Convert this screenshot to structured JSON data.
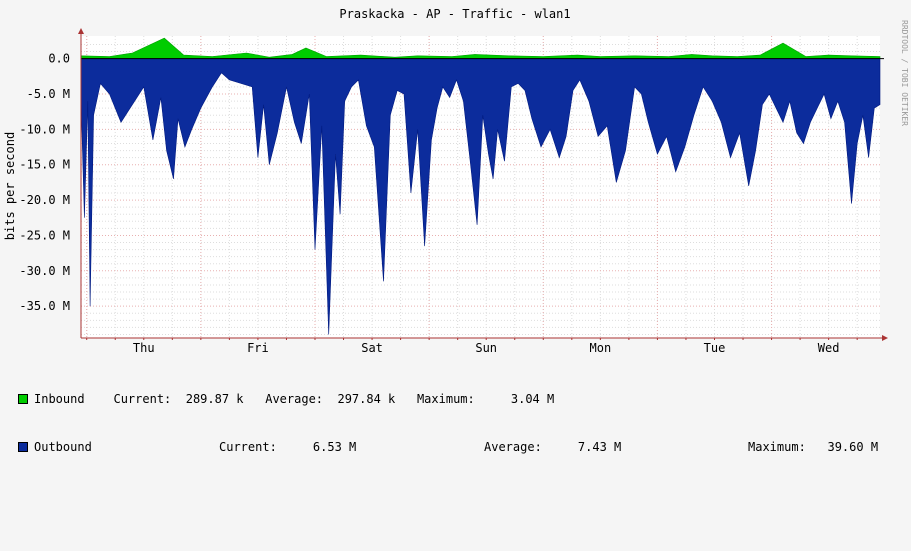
{
  "chart_data": {
    "type": "area",
    "title": "Praskacka - AP - Traffic - wlan1",
    "ylabel": "bits per second",
    "watermark": "RRDTOOL / TOBI OETIKER",
    "x_labels": [
      "Thu",
      "Fri",
      "Sat",
      "Sun",
      "Mon",
      "Tue",
      "Wed"
    ],
    "x_range_days": [
      -0.55,
      6.45
    ],
    "y_ticks": [
      "0.0",
      "-5.0 M",
      "-10.0 M",
      "-15.0 M",
      "-20.0 M",
      "-25.0 M",
      "-30.0 M",
      "-35.0 M"
    ],
    "y_tick_values": [
      0,
      -5,
      -10,
      -15,
      -20,
      -25,
      -30,
      -35
    ],
    "ylim": [
      -39.5,
      3.2
    ],
    "grid": true,
    "colors": {
      "inbound": "#00cc00",
      "outbound": "#0c2c9c",
      "inbound_edge": "#00a000",
      "outbound_edge": "#001a80",
      "grid_major": "#e8b0b0",
      "grid_minor": "#dddddd",
      "axis": "#aa3333",
      "background": "#f5f5f5",
      "plot_bg": "#ffffff"
    },
    "series": [
      {
        "name": "Inbound",
        "unit": "M",
        "x": [
          -0.55,
          -0.3,
          -0.1,
          0.18,
          0.35,
          0.6,
          0.9,
          1.1,
          1.3,
          1.42,
          1.6,
          1.9,
          2.2,
          2.4,
          2.7,
          2.9,
          3.2,
          3.5,
          3.8,
          4.0,
          4.3,
          4.6,
          4.8,
          4.98,
          5.2,
          5.4,
          5.6,
          5.8,
          6.0,
          6.2,
          6.45
        ],
        "values": [
          0.4,
          0.3,
          0.8,
          2.9,
          0.5,
          0.3,
          0.8,
          0.2,
          0.6,
          1.5,
          0.3,
          0.5,
          0.2,
          0.4,
          0.3,
          0.6,
          0.4,
          0.3,
          0.5,
          0.3,
          0.4,
          0.3,
          0.6,
          0.4,
          0.3,
          0.5,
          2.2,
          0.3,
          0.5,
          0.4,
          0.3
        ]
      },
      {
        "name": "Outbound",
        "unit": "M",
        "x": [
          -0.55,
          -0.52,
          -0.49,
          -0.47,
          -0.44,
          -0.38,
          -0.3,
          -0.2,
          -0.1,
          0.0,
          0.08,
          0.15,
          0.2,
          0.26,
          0.3,
          0.36,
          0.42,
          0.5,
          0.6,
          0.68,
          0.75,
          0.85,
          0.95,
          1.0,
          1.05,
          1.1,
          1.17,
          1.25,
          1.32,
          1.38,
          1.45,
          1.5,
          1.56,
          1.62,
          1.68,
          1.72,
          1.76,
          1.82,
          1.88,
          1.95,
          2.02,
          2.1,
          2.16,
          2.22,
          2.28,
          2.34,
          2.4,
          2.46,
          2.52,
          2.57,
          2.62,
          2.68,
          2.74,
          2.8,
          2.86,
          2.92,
          2.97,
          3.02,
          3.06,
          3.1,
          3.16,
          3.22,
          3.28,
          3.34,
          3.4,
          3.48,
          3.56,
          3.64,
          3.7,
          3.76,
          3.82,
          3.9,
          3.98,
          4.06,
          4.14,
          4.22,
          4.3,
          4.36,
          4.42,
          4.5,
          4.58,
          4.66,
          4.74,
          4.82,
          4.9,
          4.98,
          5.06,
          5.14,
          5.22,
          5.3,
          5.36,
          5.42,
          5.48,
          5.54,
          5.6,
          5.66,
          5.72,
          5.78,
          5.84,
          5.9,
          5.96,
          6.02,
          6.08,
          6.14,
          6.2,
          6.25,
          6.3,
          6.35,
          6.4,
          6.45
        ],
        "values": [
          -5.5,
          -22.5,
          -6.0,
          -35.0,
          -8.0,
          -3.5,
          -5.0,
          -9.0,
          -6.5,
          -4.0,
          -11.5,
          -5.5,
          -13.0,
          -17.0,
          -8.5,
          -12.5,
          -10.0,
          -7.0,
          -4.0,
          -2.0,
          -3.0,
          -3.5,
          -4.0,
          -14.0,
          -6.5,
          -15.0,
          -10.5,
          -4.0,
          -9.0,
          -12.0,
          -5.0,
          -27.0,
          -9.5,
          -39.0,
          -13.5,
          -22.0,
          -6.0,
          -4.0,
          -3.0,
          -9.5,
          -12.5,
          -31.5,
          -8.0,
          -4.5,
          -5.0,
          -19.0,
          -10.0,
          -26.5,
          -11.5,
          -7.0,
          -4.0,
          -5.5,
          -3.0,
          -6.0,
          -14.5,
          -23.5,
          -8.0,
          -13.5,
          -17.0,
          -10.0,
          -14.5,
          -4.0,
          -3.5,
          -4.5,
          -8.5,
          -12.5,
          -10.0,
          -14.0,
          -11.0,
          -4.5,
          -3.0,
          -6.0,
          -11.0,
          -9.5,
          -17.5,
          -13.0,
          -4.0,
          -5.0,
          -9.0,
          -13.5,
          -11.0,
          -16.0,
          -12.5,
          -8.0,
          -4.0,
          -6.0,
          -9.0,
          -14.0,
          -10.5,
          -18.0,
          -13.0,
          -6.5,
          -5.0,
          -7.0,
          -9.0,
          -6.0,
          -10.5,
          -12.0,
          -9.0,
          -7.0,
          -5.0,
          -8.5,
          -6.0,
          -9.0,
          -20.5,
          -12.0,
          -8.0,
          -14.0,
          -7.0,
          -6.5
        ]
      }
    ]
  },
  "legend": {
    "inbound": {
      "name": "Inbound",
      "current_label": "Current:",
      "current": "289.87 k",
      "average_label": "Average:",
      "average": "297.84 k",
      "maximum_label": "Maximum:",
      "maximum": "3.04 M"
    },
    "outbound": {
      "name": "Outbound",
      "current_label": "Current:",
      "current": "6.53 M",
      "average_label": "Average:",
      "average": "7.43 M",
      "maximum_label": "Maximum:",
      "maximum": "39.60 M"
    }
  }
}
